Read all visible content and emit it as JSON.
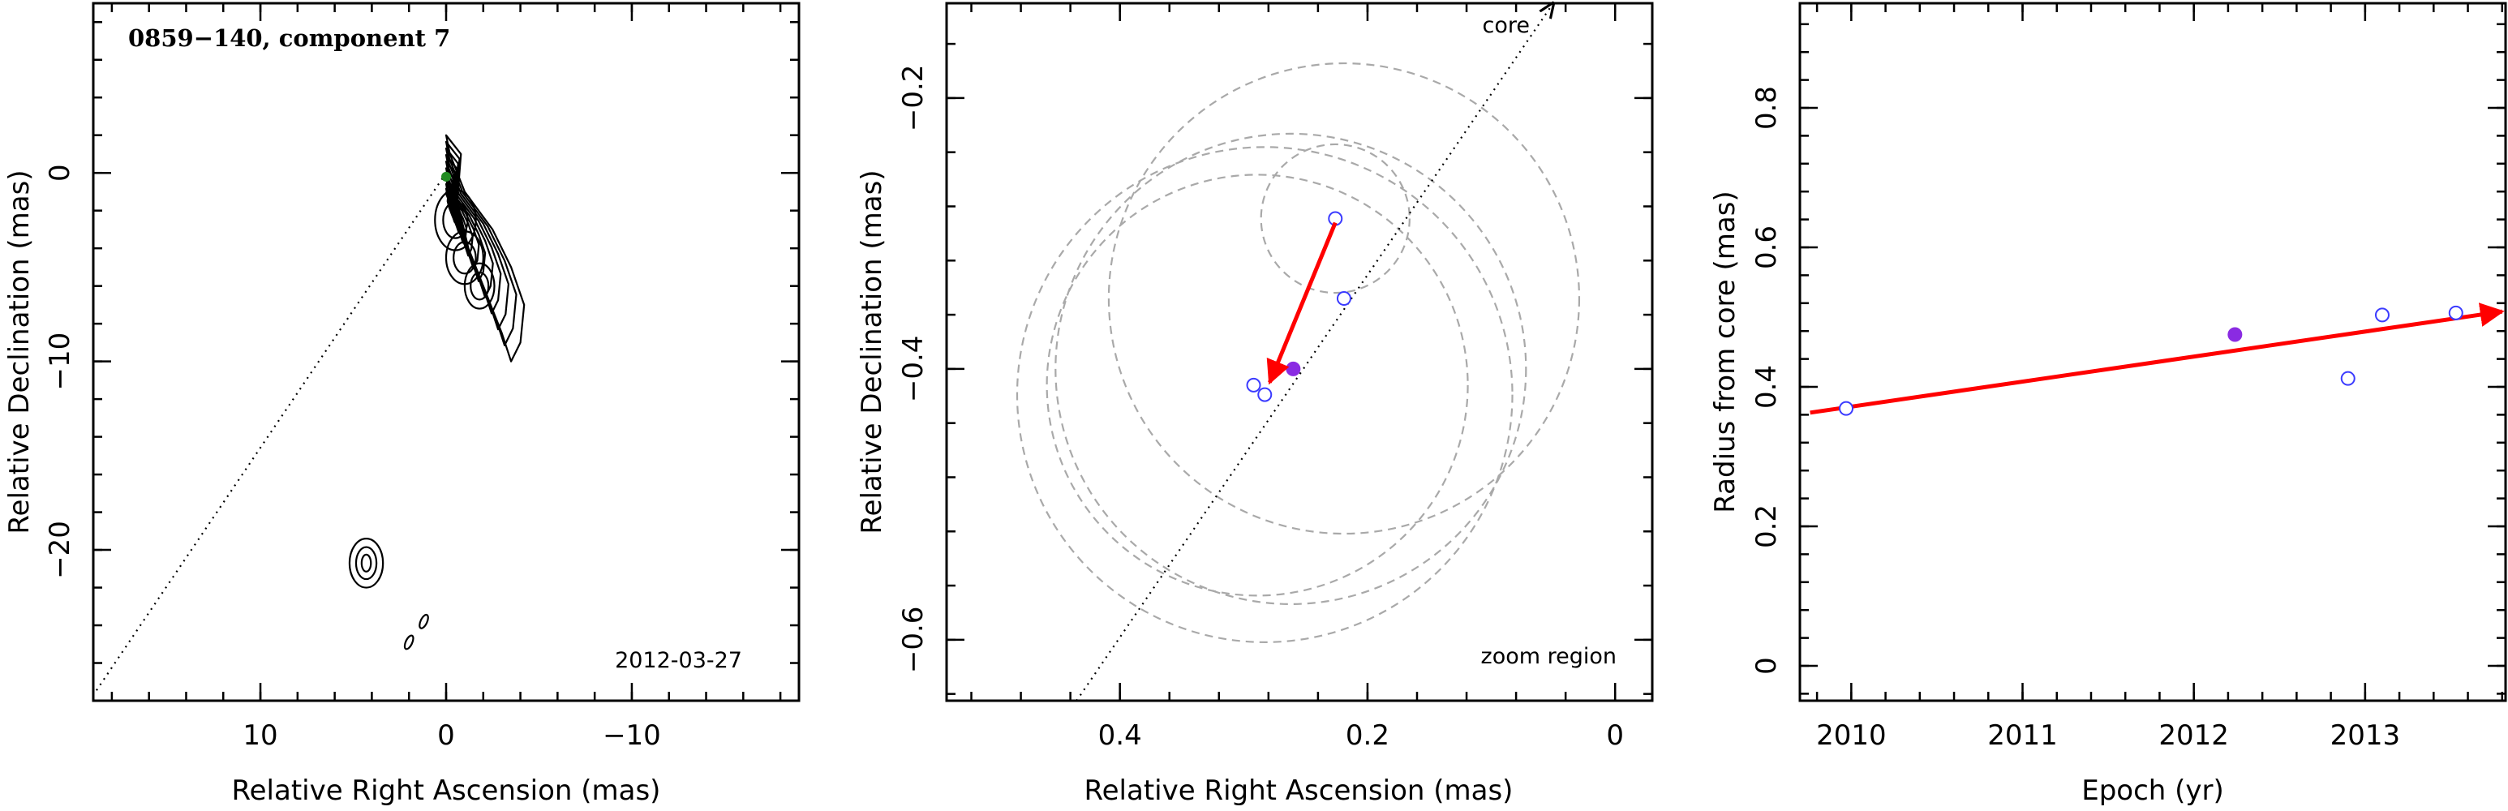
{
  "chart_data": [
    {
      "type": "contour",
      "title": "0859−140, component 7",
      "date_label": "2012-03-27",
      "xlabel": "Relative Right Ascension (mas)",
      "ylabel": "Relative Declination (mas)",
      "xlim": [
        19,
        -19
      ],
      "ylim": [
        -28,
        9
      ],
      "xticks": [
        10,
        0,
        -10
      ],
      "xtick_labels": [
        "10",
        "0",
        "−10"
      ],
      "yticks": [
        0,
        -10,
        -20
      ],
      "ytick_labels": [
        "0",
        "−10",
        "−20"
      ],
      "core_line": {
        "x": [
          0,
          19
        ],
        "y": [
          0,
          -27.7
        ]
      },
      "core_marker": {
        "x": 0,
        "y": -0.2,
        "color": "#228b22"
      },
      "contour_regions": [
        {
          "name": "jet",
          "points": [
            [
              0,
              2
            ],
            [
              -0.8,
              1
            ],
            [
              -0.6,
              -1.5
            ],
            [
              -1.2,
              -4
            ],
            [
              -2,
              -6
            ],
            [
              -2.4,
              -7
            ],
            [
              -3,
              -8.5
            ],
            [
              -3.5,
              -10
            ],
            [
              -4,
              -9
            ],
            [
              -4.2,
              -7
            ],
            [
              -3.5,
              -5
            ],
            [
              -2.5,
              -3
            ],
            [
              -1,
              -1
            ],
            [
              -0.2,
              1
            ]
          ]
        },
        {
          "name": "blob",
          "points": [
            [
              4.3,
              -20.7
            ]
          ]
        },
        {
          "name": "knot-a",
          "points": [
            [
              1.2,
              -23.8
            ]
          ]
        },
        {
          "name": "knot-b",
          "points": [
            [
              2.0,
              -24.9
            ]
          ]
        }
      ]
    },
    {
      "type": "scatter",
      "corner_label": "zoom region",
      "core_label": "core",
      "xlabel": "Relative Right Ascension (mas)",
      "ylabel": "Relative Declination (mas)",
      "xlim": [
        0.54,
        -0.03
      ],
      "ylim": [
        -0.645,
        -0.13
      ],
      "xticks": [
        0.4,
        0.2,
        0
      ],
      "xtick_labels": [
        "0.4",
        "0.2",
        "0"
      ],
      "yticks": [
        -0.2,
        -0.4,
        -0.6
      ],
      "ytick_labels": [
        "−0.2",
        "−0.4",
        "−0.6"
      ],
      "circles": [
        {
          "cx": 0.226,
          "cy": -0.289,
          "r": 0.06
        },
        {
          "cx": 0.219,
          "cy": -0.348,
          "r": 0.19
        },
        {
          "cx": 0.283,
          "cy": -0.419,
          "r": 0.2
        },
        {
          "cx": 0.289,
          "cy": -0.412,
          "r": 0.17
        },
        {
          "cx": 0.262,
          "cy": -0.4,
          "r": 0.19
        }
      ],
      "open_points": {
        "x": [
          0.226,
          0.219,
          0.292,
          0.283
        ],
        "y": [
          -0.289,
          -0.348,
          -0.412,
          -0.419
        ],
        "color": "#3b3bff"
      },
      "filled_point": {
        "x": 0.26,
        "y": -0.4,
        "color": "#8a2be2"
      },
      "motion_vector": {
        "from": [
          0.226,
          -0.292
        ],
        "to": [
          0.279,
          -0.41
        ],
        "color": "#ff0000"
      },
      "core_line": {
        "x": [
          0.435,
          0.05
        ],
        "y": [
          -0.645,
          -0.13
        ]
      }
    },
    {
      "type": "scatter",
      "xlabel": "Epoch (yr)",
      "ylabel": "Radius from core (mas)",
      "xlim": [
        2009.7,
        2013.82
      ],
      "ylim": [
        -0.05,
        0.95
      ],
      "xticks": [
        2010,
        2011,
        2012,
        2013
      ],
      "xtick_labels": [
        "2010",
        "2011",
        "2012",
        "2013"
      ],
      "yticks": [
        0,
        0.2,
        0.4,
        0.6,
        0.8
      ],
      "ytick_labels": [
        "0",
        "0.2",
        "0.4",
        "0.6",
        "0.8"
      ],
      "open_points": {
        "x": [
          2009.97,
          2012.9,
          2013.1,
          2013.53
        ],
        "y": [
          0.369,
          0.412,
          0.503,
          0.506
        ],
        "color": "#3b3bff"
      },
      "filled_point": {
        "x": 2012.24,
        "y": 0.475,
        "color": "#8a2be2"
      },
      "trend_vector": {
        "from": [
          2009.76,
          0.363
        ],
        "to": [
          2013.8,
          0.508
        ],
        "color": "#ff0000"
      }
    }
  ]
}
